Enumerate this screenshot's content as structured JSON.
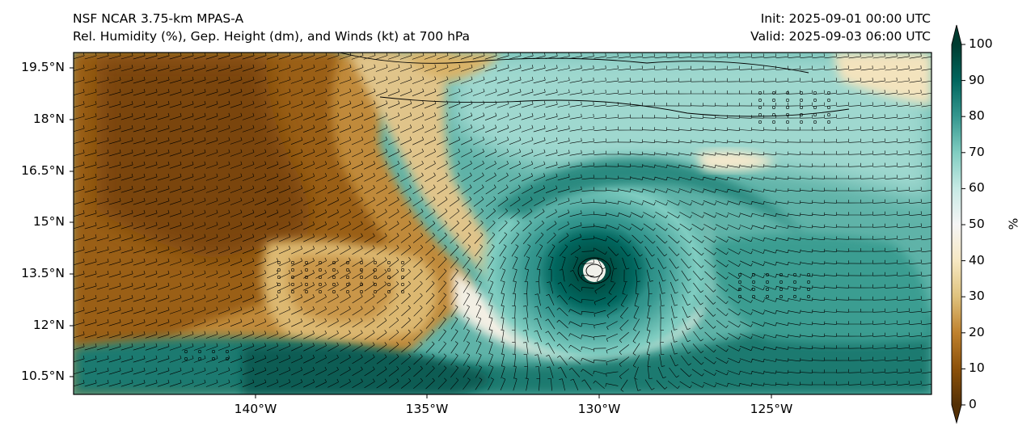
{
  "header": {
    "model": "NSF NCAR 3.75-km MPAS-A",
    "description": "Rel. Humidity (%), Gep. Height (dm), and Winds (kt) at 700 hPa",
    "init": "Init: 2025-09-01 00:00 UTC",
    "valid": "Valid: 2025-09-03 06:00 UTC"
  },
  "axes": {
    "lat_ticks": [
      "19.5°N",
      "18°N",
      "16.5°N",
      "15°N",
      "13.5°N",
      "12°N",
      "10.5°N"
    ],
    "lon_ticks": [
      "140°W",
      "135°W",
      "130°W",
      "125°W"
    ]
  },
  "colorbar": {
    "label": "%",
    "ticks": [
      "0",
      "10",
      "20",
      "30",
      "40",
      "50",
      "60",
      "70",
      "80",
      "90",
      "100"
    ],
    "colors": [
      "#543005",
      "#8c510a",
      "#bf812d",
      "#dfc27d",
      "#f6e8c3",
      "#f5f5f5",
      "#c7eae5",
      "#80cdc1",
      "#35978f",
      "#01665e",
      "#003c30"
    ]
  },
  "map": {
    "storm_center_lon": -130.3,
    "storm_center_lat": 13.7,
    "extent_lon": [
      -145.3,
      -120.3
    ],
    "extent_lat": [
      10.0,
      20.0
    ]
  }
}
